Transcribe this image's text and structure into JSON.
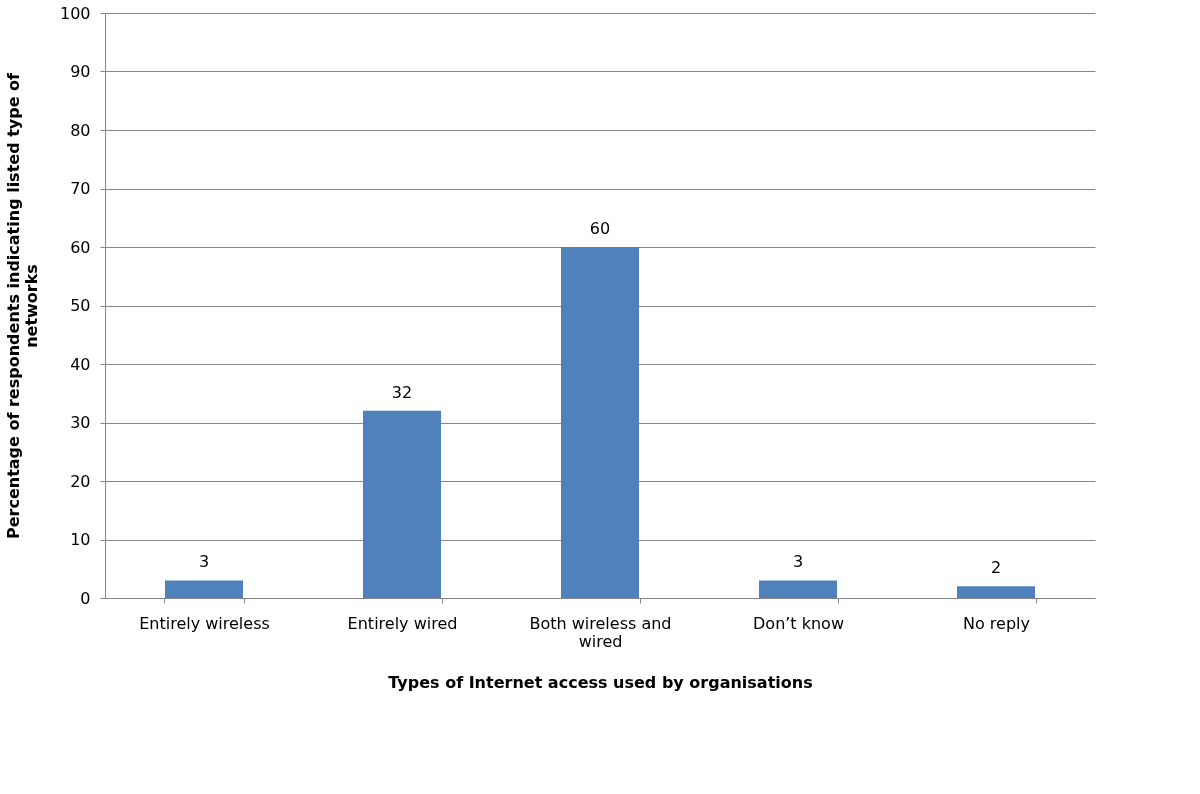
{
  "chart_data": {
    "type": "bar",
    "categories": [
      "Entirely wireless",
      "Entirely wired",
      "Both wireless and wired",
      "Don’t know",
      "No reply"
    ],
    "values": [
      3,
      32,
      60,
      3,
      2
    ],
    "color": "#4f81bd",
    "xlabel": "Types of Internet access used by organisations",
    "ylabel": "Percentage of respondents indicating  listed type of\nnetworks",
    "ylim": [
      0,
      100
    ],
    "yticks": [
      0,
      10,
      20,
      30,
      40,
      50,
      60,
      70,
      80,
      90,
      100
    ],
    "grid": "y",
    "data_labels": true
  }
}
